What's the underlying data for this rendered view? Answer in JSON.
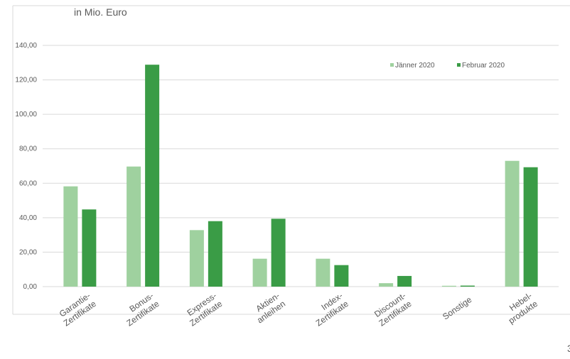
{
  "chart_data": {
    "type": "bar",
    "unit_label": "in Mio. Euro",
    "categories": [
      [
        "Garantie-",
        "Zertifikate"
      ],
      [
        "Bonus-",
        "Zertifikate"
      ],
      [
        "Express-",
        "Zertifikate"
      ],
      [
        "Aktien-",
        "anleihen"
      ],
      [
        "Index-",
        "Zertifikate"
      ],
      [
        "Discount-",
        "Zertifikate"
      ],
      [
        "Sonstige"
      ],
      [
        "Hebel-",
        "produkte"
      ]
    ],
    "series": [
      {
        "name": "Jänner 2020",
        "color": "#9fd19f",
        "values": [
          58.2,
          69.7,
          32.8,
          16.2,
          16.2,
          2.0,
          0.5,
          73.0
        ]
      },
      {
        "name": "Februar 2020",
        "color": "#3a9c46",
        "values": [
          44.8,
          128.8,
          38.0,
          39.4,
          12.5,
          6.2,
          0.6,
          69.3
        ]
      }
    ],
    "ylim": [
      0,
      140
    ],
    "yticks": [
      "0,00",
      "20,00",
      "40,00",
      "60,00",
      "80,00",
      "100,00",
      "120,00",
      "140,00"
    ],
    "grid": true,
    "legend_position": "top-right",
    "corner_mark": "3"
  }
}
